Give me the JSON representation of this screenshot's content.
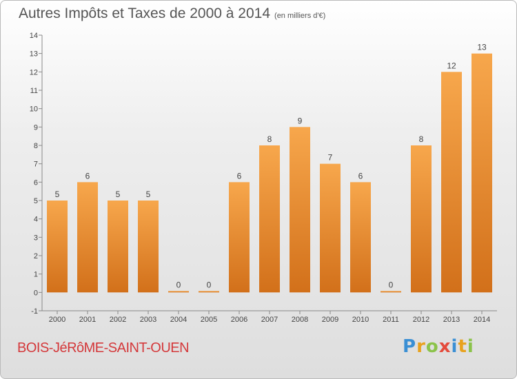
{
  "title": {
    "main": "Autres Impôts et Taxes de 2000 à 2014",
    "sub": "(en milliers d'€)"
  },
  "commune": "BOIS-JéRôME-SAINT-OUEN",
  "brand": {
    "letters": [
      "P",
      "r",
      "o",
      "x",
      "i",
      "t",
      "i"
    ],
    "colors": [
      "#3a8fd4",
      "#e8a21e",
      "#8bc34a",
      "#e44b3c",
      "#3a8fd4",
      "#e8a21e",
      "#8bc34a"
    ]
  },
  "colors": {
    "bar_top": "#f7a74c",
    "bar_bottom": "#d2701a",
    "axis": "#888888"
  },
  "chart_data": {
    "type": "bar",
    "categories": [
      "2000",
      "2001",
      "2002",
      "2003",
      "2004",
      "2005",
      "2006",
      "2007",
      "2008",
      "2009",
      "2010",
      "2011",
      "2012",
      "2013",
      "2014"
    ],
    "values": [
      5,
      6,
      5,
      5,
      0,
      0,
      6,
      8,
      9,
      7,
      6,
      0,
      8,
      12,
      13
    ],
    "y_ticks": [
      "-1",
      "0",
      "1",
      "2",
      "3",
      "4",
      "5",
      "6",
      "7",
      "8",
      "9",
      "10",
      "11",
      "12",
      "13",
      "14"
    ],
    "ylim": [
      -1,
      14
    ],
    "grid": false,
    "data_labels": true
  }
}
